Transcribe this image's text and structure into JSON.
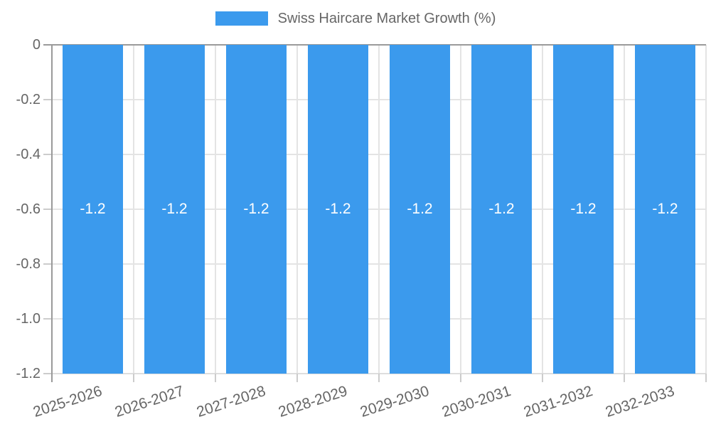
{
  "chart_data": {
    "type": "bar",
    "title": "Swiss Haircare Market Growth (%)",
    "categories": [
      "2025-2026",
      "2026-2027",
      "2027-2028",
      "2028-2029",
      "2029-2030",
      "2030-2031",
      "2031-2032",
      "2032-2033"
    ],
    "values": [
      -1.2,
      -1.2,
      -1.2,
      -1.2,
      -1.2,
      -1.2,
      -1.2,
      -1.2
    ],
    "bar_value_labels": [
      "-1.2",
      "-1.2",
      "-1.2",
      "-1.2",
      "-1.2",
      "-1.2",
      "-1.2",
      "-1.2"
    ],
    "xlabel": "",
    "ylabel": "",
    "ylim": [
      0,
      -1.2
    ],
    "yticks": [
      0,
      -0.2,
      -0.4,
      -0.6,
      -0.8,
      -1.0,
      -1.2
    ],
    "ytick_labels": [
      "0",
      "-0.2",
      "-0.4",
      "-0.6",
      "-0.8",
      "-1.0",
      "-1.2"
    ],
    "grid": true,
    "legend": {
      "position": "top",
      "label": "Swiss Haircare Market Growth (%)"
    },
    "colors": {
      "bar": "#3B9AED",
      "grid": "#E4E4E4",
      "axis": "#9A9A9A",
      "bottom_line": "#DEDEDE",
      "tick": "#CCCCCC",
      "text": "#666666",
      "bar_label": "#FFFFFF",
      "background": "#FFFFFF"
    }
  }
}
